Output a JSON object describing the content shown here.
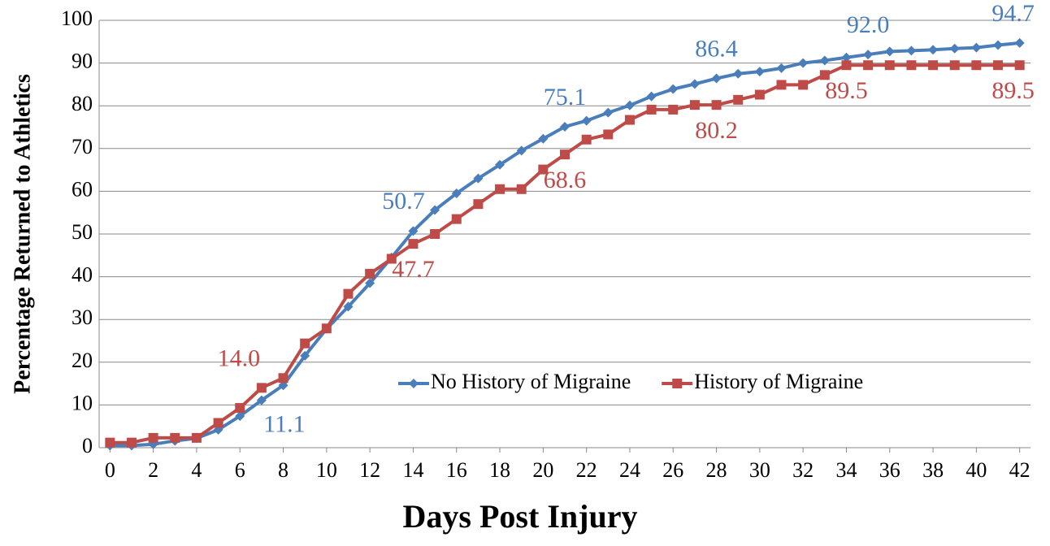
{
  "chart_data": {
    "type": "line",
    "x": [
      0,
      1,
      2,
      3,
      4,
      5,
      6,
      7,
      8,
      9,
      10,
      11,
      12,
      13,
      14,
      15,
      16,
      17,
      18,
      19,
      20,
      21,
      22,
      23,
      24,
      25,
      26,
      27,
      28,
      29,
      30,
      31,
      32,
      33,
      34,
      35,
      36,
      37,
      38,
      39,
      40,
      41,
      42
    ],
    "series": [
      {
        "name": "No History of Migraine",
        "color": "#4a7ebb",
        "marker": "diamond",
        "values": [
          0.5,
          0.5,
          0.8,
          1.6,
          2.2,
          4.2,
          7.4,
          11.1,
          14.6,
          21.5,
          27.8,
          33,
          38.5,
          44.5,
          50.7,
          55.6,
          59.5,
          63,
          66.2,
          69.5,
          72.3,
          75.1,
          76.5,
          78.4,
          80.1,
          82.2,
          83.9,
          85.1,
          86.4,
          87.5,
          88,
          88.8,
          90,
          90.6,
          91.3,
          92.0,
          92.7,
          92.9,
          93.1,
          93.4,
          93.6,
          94.2,
          94.7
        ],
        "value_labels": [
          null,
          null,
          null,
          null,
          null,
          null,
          null,
          "11.1",
          null,
          null,
          null,
          null,
          null,
          null,
          "50.7",
          null,
          null,
          null,
          null,
          null,
          null,
          "75.1",
          null,
          null,
          null,
          null,
          null,
          null,
          "86.4",
          null,
          null,
          null,
          null,
          null,
          null,
          "92.0",
          null,
          null,
          null,
          null,
          null,
          null,
          "94.7"
        ]
      },
      {
        "name": "History of Migraine",
        "color": "#be4b48",
        "marker": "square",
        "values": [
          1.2,
          1.2,
          2.3,
          2.3,
          2.3,
          5.8,
          9.3,
          14.0,
          16.3,
          24.4,
          27.9,
          36,
          40.7,
          44.2,
          47.7,
          50,
          53.5,
          57,
          60.5,
          60.5,
          65.1,
          68.6,
          72.1,
          73.3,
          76.7,
          79.1,
          79.1,
          80.2,
          80.2,
          81.4,
          82.6,
          84.9,
          84.9,
          87.2,
          89.5,
          89.5,
          89.5,
          89.5,
          89.5,
          89.5,
          89.5,
          89.5,
          89.5
        ],
        "value_labels": [
          null,
          null,
          null,
          null,
          null,
          null,
          null,
          "14.0",
          null,
          null,
          null,
          null,
          null,
          null,
          "47.7",
          null,
          null,
          null,
          null,
          null,
          null,
          "68.6",
          null,
          null,
          null,
          null,
          null,
          null,
          "80.2",
          null,
          null,
          null,
          null,
          null,
          "89.5",
          null,
          null,
          null,
          null,
          null,
          null,
          null,
          "89.5"
        ]
      }
    ],
    "xlabel": "Days Post Injury",
    "ylabel": "Percentage Returned to Athletics",
    "xlim": [
      -0.5,
      42.5
    ],
    "ylim": [
      0,
      100
    ],
    "xticks": [
      0,
      2,
      4,
      6,
      8,
      10,
      12,
      14,
      16,
      18,
      20,
      22,
      24,
      26,
      28,
      30,
      32,
      34,
      36,
      38,
      40,
      42
    ],
    "yticks": [
      0,
      10,
      20,
      30,
      40,
      50,
      60,
      70,
      80,
      90,
      100
    ],
    "grid": true,
    "legend": "lower right"
  }
}
